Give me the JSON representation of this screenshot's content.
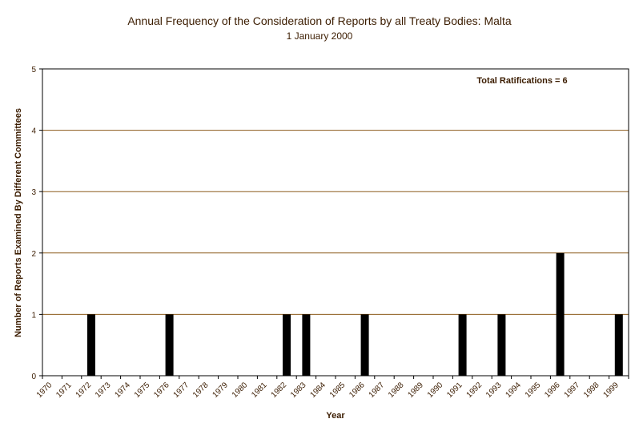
{
  "chart_data": {
    "type": "bar",
    "title": "Annual Frequency of the Consideration of Reports by all Treaty Bodies: Malta",
    "subtitle": "1 January 2000",
    "xlabel": "Year",
    "ylabel": "Number of Reports Examined By Different Committees",
    "annotation": "Total Ratifications = 6",
    "categories": [
      "1970",
      "1971",
      "1972",
      "1973",
      "1974",
      "1975",
      "1976",
      "1977",
      "1978",
      "1979",
      "1980",
      "1981",
      "1982",
      "1983",
      "1984",
      "1985",
      "1986",
      "1987",
      "1988",
      "1989",
      "1990",
      "1991",
      "1992",
      "1993",
      "1994",
      "1995",
      "1996",
      "1997",
      "1998",
      "1999"
    ],
    "values": [
      0,
      0,
      1,
      0,
      0,
      0,
      1,
      0,
      0,
      0,
      0,
      0,
      1,
      1,
      0,
      0,
      1,
      0,
      0,
      0,
      0,
      1,
      0,
      1,
      0,
      0,
      2,
      0,
      0,
      1
    ],
    "ylim": [
      0,
      5
    ],
    "yticks": [
      "0",
      "1",
      "2",
      "3",
      "4",
      "5"
    ],
    "grid": true,
    "colors": {
      "bar": "#000000",
      "grid": "#8b5a1a",
      "text": "#3b1c00"
    }
  }
}
